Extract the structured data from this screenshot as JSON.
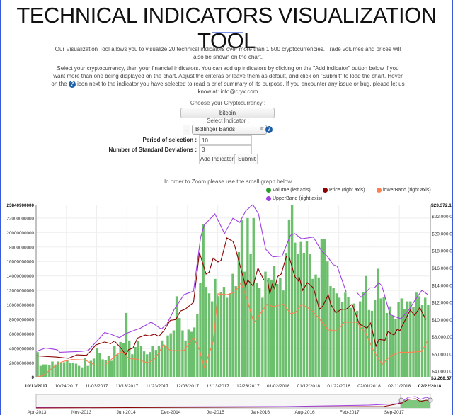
{
  "header": {
    "title": "TECHNICAL INDICATORS VISUALIZATION TOOL"
  },
  "intro": {
    "p1": "Our Visualization Tool allows you to visualize 20 technical indicators over more than 1,500 cryptocurrencies. Trade volumes and prices will also be shown on the chart.",
    "p2_a": "Select your cryptocurrency, then your financial indicators. You can add up indicators by clicking on the \"Add indicator\" button below if you want more than one being displayed on the chart. Adjust the criteras or leave them as default, and click on \"Submit\" to load the chart. Hover on the",
    "p2_b": "icon next to the indicator you have selected to read a brief summary of its purpose. If you encounter any issue or bug, please let us know at: info@cryx.com"
  },
  "form": {
    "crypto_label": "Choose your Cryptocurrency :",
    "crypto_value": "bitcoin",
    "indicator_label": "Select Indicator :",
    "remove_label": "-",
    "indicator_value": "Bollinger Bands",
    "help_glyph": "?",
    "period_label": "Period of selection :",
    "period_value": "10",
    "stddev_label": "Number of Standard Deviations :",
    "stddev_value": "3",
    "add_label": "Add Indicator",
    "submit_label": "Submit"
  },
  "zoom_hint": "In order to Zoom please use the small graph below",
  "chart_data": {
    "type": "bar+line",
    "legend": [
      {
        "name": "Volume (left axis)",
        "color": "#2ca02c"
      },
      {
        "name": "Price (right axis)",
        "color": "#8b0000"
      },
      {
        "name": "lowerBand (right axis)",
        "color": "#ff7f50"
      },
      {
        "name": "UpperBand (right axis)",
        "color": "#a040e0"
      }
    ],
    "legend_placement": "top-right",
    "left_axis": {
      "min": 0,
      "max": 23840900000,
      "max_label": "23840900000",
      "ticks": [
        "2000000000",
        "4000000000",
        "6000000000",
        "8000000000",
        "10000000000",
        "12000000000",
        "14000000000",
        "16000000000",
        "18000000000",
        "20000000000",
        "22000000000"
      ],
      "zero_label": "0"
    },
    "right_axis": {
      "min": 3268.57,
      "max": 23372.11,
      "min_label": "$3,268.57",
      "max_label": "$23,372.11",
      "ticks": [
        "$4,000.00",
        "$6,000.00",
        "$8,000.00",
        "$10,000.00",
        "$12,000.00",
        "$14,000.00",
        "$16,000.00",
        "$18,000.00",
        "$20,000.00",
        "$22,000.00"
      ]
    },
    "x_labels": [
      "10/13/2017",
      "10/24/2017",
      "11/03/2017",
      "11/13/2017",
      "11/23/2017",
      "12/03/2017",
      "12/13/2017",
      "12/23/2017",
      "01/02/2018",
      "01/12/2018",
      "01/22/2018",
      "02/01/2018",
      "02/11/2018",
      "02/22/2018"
    ],
    "x_range_days": [
      0,
      132
    ],
    "volume_billions": [
      3.5,
      1.6,
      1.8,
      1.8,
      1.7,
      2.2,
      1.8,
      2.2,
      2.0,
      2.1,
      2.3,
      2.0,
      2.0,
      1.9,
      1.6,
      1.4,
      2.7,
      1.6,
      2.3,
      2.6,
      4.0,
      3.4,
      2.5,
      2.4,
      3.0,
      2.3,
      4.4,
      3.2,
      4.9,
      4.7,
      8.9,
      5.1,
      3.2,
      4.2,
      5.0,
      4.4,
      3.6,
      3.2,
      3.5,
      4.3,
      3.8,
      4.3,
      5.1,
      4.4,
      5.8,
      6.1,
      6.5,
      11.2,
      8.2,
      6.5,
      5.1,
      6.6,
      6.3,
      6.9,
      8.8,
      13.0,
      21.2,
      12.5,
      11.6,
      10.5,
      13.6,
      11.2,
      11.8,
      12.5,
      11.0,
      11.6,
      14.3,
      12.6,
      17.3,
      21.7,
      14.6,
      22.0,
      17.1,
      22.0,
      13.0,
      12.4,
      11.0,
      14.6,
      13.7,
      13.5,
      15.4,
      12.9,
      13.7,
      12.0,
      17.2,
      21.8,
      23.8,
      18.6,
      17.0,
      18.7,
      17.2,
      18.8,
      17.0,
      13.6,
      14.2,
      13.8,
      19.1,
      19.1,
      16.0,
      12.6,
      12.4,
      11.6,
      11.0,
      10.4,
      11.7,
      11.1,
      9.6,
      10.2,
      9.2,
      10.5,
      11.8,
      14.0,
      9.3,
      9.2,
      10.7,
      15.0,
      10.9,
      11.1,
      8.9,
      9.8,
      8.5,
      8.1,
      10.4,
      10.9,
      9.4,
      10.5,
      10.5,
      9.7,
      11.7,
      11.2,
      10.0,
      11.0,
      10.0
    ],
    "series": [
      {
        "name": "Price",
        "points": [
          [
            0,
            5800
          ],
          [
            4,
            5700
          ],
          [
            6.6,
            5650
          ],
          [
            10.9,
            5500
          ],
          [
            13.7,
            5900
          ],
          [
            16.9,
            5850
          ],
          [
            18,
            6200
          ],
          [
            20,
            7050
          ],
          [
            23,
            7400
          ],
          [
            25,
            7200
          ],
          [
            26.3,
            7500
          ],
          [
            28.7,
            6600
          ],
          [
            30,
            5900
          ],
          [
            31,
            6500
          ],
          [
            32.5,
            6700
          ],
          [
            34,
            7850
          ],
          [
            36.6,
            8200
          ],
          [
            38,
            8100
          ],
          [
            39.7,
            8300
          ],
          [
            41.2,
            8050
          ],
          [
            42.8,
            8700
          ],
          [
            45,
            9900
          ],
          [
            46.9,
            10000
          ],
          [
            48.4,
            11000
          ],
          [
            50,
            11200
          ],
          [
            52.8,
            12000
          ],
          [
            54.8,
            17800
          ],
          [
            57,
            15300
          ],
          [
            58,
            15500
          ],
          [
            59.4,
            17150
          ],
          [
            61,
            16700
          ],
          [
            62,
            16900
          ],
          [
            64,
            19500
          ],
          [
            66,
            19100
          ],
          [
            66.7,
            18500
          ],
          [
            70.3,
            13850
          ],
          [
            71,
            14600
          ],
          [
            72.8,
            13900
          ],
          [
            74.4,
            16000
          ],
          [
            76.4,
            14600
          ],
          [
            77.6,
            14600
          ],
          [
            78.4,
            13000
          ],
          [
            79.2,
            14100
          ],
          [
            80,
            13600
          ],
          [
            81,
            15000
          ],
          [
            82.2,
            15300
          ],
          [
            84,
            17400
          ],
          [
            84.8,
            17400
          ],
          [
            86.8,
            15000
          ],
          [
            88,
            14500
          ],
          [
            88.2,
            15000
          ],
          [
            89.4,
            13400
          ],
          [
            91,
            14300
          ],
          [
            93,
            13700
          ],
          [
            95,
            11200
          ],
          [
            96.2,
            11600
          ],
          [
            98,
            12900
          ],
          [
            98.8,
            11800
          ],
          [
            100.5,
            10800
          ],
          [
            102.5,
            11200
          ],
          [
            104,
            11200
          ],
          [
            106,
            11800
          ],
          [
            108.4,
            9500
          ],
          [
            111,
            9000
          ],
          [
            112.2,
            9600
          ],
          [
            114,
            6900
          ],
          [
            115,
            7700
          ],
          [
            117,
            7600
          ],
          [
            118,
            8600
          ],
          [
            120,
            8200
          ],
          [
            121.2,
            8900
          ],
          [
            122,
            8700
          ],
          [
            124,
            10100
          ],
          [
            125.5,
            11100
          ],
          [
            127,
            10500
          ],
          [
            128.7,
            11400
          ],
          [
            130.7,
            10000
          ]
        ]
      },
      {
        "name": "lowerBand",
        "points": [
          [
            0,
            3300
          ],
          [
            2.4,
            3500
          ],
          [
            6.3,
            4600
          ],
          [
            8.7,
            5100
          ],
          [
            12,
            5350
          ],
          [
            16.5,
            5300
          ],
          [
            19.7,
            4700
          ],
          [
            23,
            4700
          ],
          [
            27,
            5900
          ],
          [
            28.7,
            6300
          ],
          [
            31,
            5500
          ],
          [
            34.3,
            5350
          ],
          [
            37.5,
            4950
          ],
          [
            40,
            5500
          ],
          [
            42.8,
            7100
          ],
          [
            45,
            6400
          ],
          [
            49.6,
            6400
          ],
          [
            52.8,
            7950
          ],
          [
            54.8,
            6500
          ],
          [
            56.4,
            4400
          ],
          [
            59.5,
            7500
          ],
          [
            61,
            13000
          ],
          [
            64,
            12900
          ],
          [
            66.7,
            13200
          ],
          [
            68.7,
            14300
          ],
          [
            70.7,
            12500
          ],
          [
            73,
            9600
          ],
          [
            75.4,
            10800
          ],
          [
            77.5,
            11800
          ],
          [
            79.4,
            11500
          ],
          [
            83,
            11800
          ],
          [
            85.3,
            10700
          ],
          [
            87,
            10800
          ],
          [
            89,
            11800
          ],
          [
            92,
            11200
          ],
          [
            94,
            10500
          ],
          [
            98,
            8800
          ],
          [
            101,
            8700
          ],
          [
            103.4,
            9700
          ],
          [
            107.5,
            9700
          ],
          [
            110.6,
            8400
          ],
          [
            113,
            6500
          ],
          [
            116,
            4800
          ],
          [
            119,
            5800
          ],
          [
            122,
            6200
          ],
          [
            125.5,
            6200
          ],
          [
            129.4,
            6300
          ],
          [
            131.4,
            7600
          ]
        ]
      },
      {
        "name": "UpperBand",
        "points": [
          [
            0,
            6300
          ],
          [
            3.2,
            6700
          ],
          [
            7,
            6500
          ],
          [
            8,
            6200
          ],
          [
            15,
            6300
          ],
          [
            17.5,
            6400
          ],
          [
            23,
            8500
          ],
          [
            25,
            8300
          ],
          [
            28,
            7900
          ],
          [
            30,
            8350
          ],
          [
            32.5,
            8700
          ],
          [
            35,
            9000
          ],
          [
            38.6,
            9700
          ],
          [
            42,
            8900
          ],
          [
            43.9,
            9500
          ],
          [
            46.3,
            11150
          ],
          [
            49.6,
            12900
          ],
          [
            52.8,
            13300
          ],
          [
            55.2,
            19600
          ],
          [
            56.4,
            21000
          ],
          [
            60,
            22300
          ],
          [
            63.2,
            20000
          ],
          [
            66,
            21800
          ],
          [
            68.3,
            21300
          ],
          [
            70.3,
            22650
          ],
          [
            72.7,
            23372
          ],
          [
            74.6,
            22300
          ],
          [
            77,
            18200
          ],
          [
            79.4,
            17300
          ],
          [
            82.5,
            17400
          ],
          [
            85.3,
            19800
          ],
          [
            86.8,
            20000
          ],
          [
            89,
            19400
          ],
          [
            93,
            19600
          ],
          [
            95.7,
            18000
          ],
          [
            97.6,
            17400
          ],
          [
            99.6,
            16400
          ],
          [
            101,
            16200
          ],
          [
            104,
            13200
          ],
          [
            107.5,
            13200
          ],
          [
            109,
            12600
          ],
          [
            112,
            13700
          ],
          [
            113.5,
            13700
          ],
          [
            115,
            14300
          ],
          [
            116,
            13900
          ],
          [
            118.7,
            10600
          ],
          [
            120.7,
            10300
          ],
          [
            122.4,
            10100
          ],
          [
            125,
            11100
          ],
          [
            127,
            12200
          ],
          [
            129.4,
            13400
          ],
          [
            131.4,
            12900
          ]
        ]
      }
    ],
    "navigator": {
      "labels": [
        "Apr-2013",
        "Nov-2013",
        "Jun-2014",
        "Dec-2014",
        "Jul-2015",
        "Jan-2016",
        "Aug-2016",
        "Feb-2017",
        "Sep-2017"
      ]
    }
  }
}
